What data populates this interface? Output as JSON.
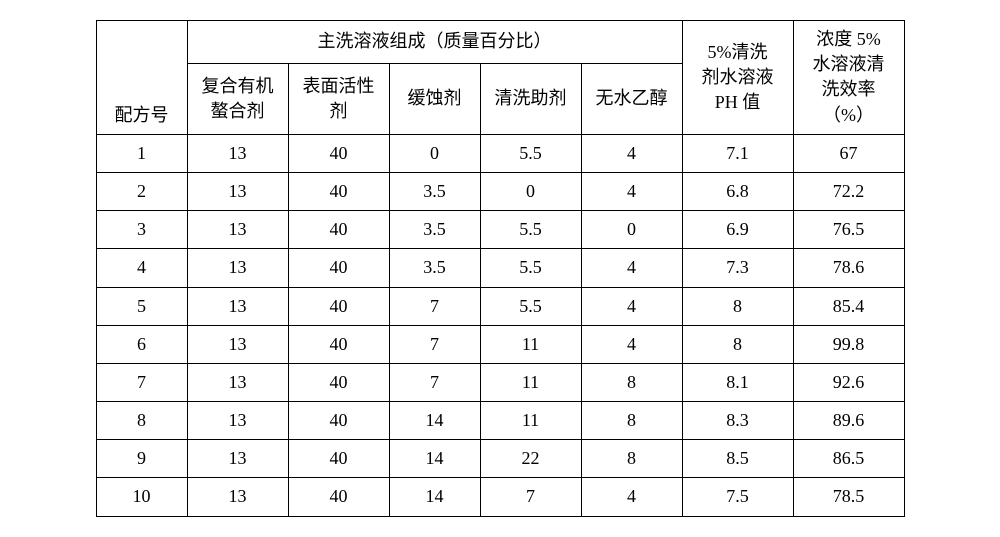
{
  "table": {
    "header": {
      "formula_label": "配方号",
      "composition_label": "主洗溶液组成（质量百分比）",
      "cols": {
        "a": "复合有机\n螯合剂",
        "b": "表面活性\n剂",
        "c": "缓蚀剂",
        "d": "清洗助剂",
        "e": "无水乙醇"
      },
      "ph_label": "5%清洗\n剂水溶液\nPH 值",
      "eff_label": "浓度 5%\n水溶液清\n洗效率\n（%）"
    },
    "rows": [
      {
        "n": "1",
        "a": "13",
        "b": "40",
        "c": "0",
        "d": "5.5",
        "e": "4",
        "ph": "7.1",
        "eff": "67"
      },
      {
        "n": "2",
        "a": "13",
        "b": "40",
        "c": "3.5",
        "d": "0",
        "e": "4",
        "ph": "6.8",
        "eff": "72.2"
      },
      {
        "n": "3",
        "a": "13",
        "b": "40",
        "c": "3.5",
        "d": "5.5",
        "e": "0",
        "ph": "6.9",
        "eff": "76.5"
      },
      {
        "n": "4",
        "a": "13",
        "b": "40",
        "c": "3.5",
        "d": "5.5",
        "e": "4",
        "ph": "7.3",
        "eff": "78.6"
      },
      {
        "n": "5",
        "a": "13",
        "b": "40",
        "c": "7",
        "d": "5.5",
        "e": "4",
        "ph": "8",
        "eff": "85.4"
      },
      {
        "n": "6",
        "a": "13",
        "b": "40",
        "c": "7",
        "d": "11",
        "e": "4",
        "ph": "8",
        "eff": "99.8"
      },
      {
        "n": "7",
        "a": "13",
        "b": "40",
        "c": "7",
        "d": "11",
        "e": "8",
        "ph": "8.1",
        "eff": "92.6"
      },
      {
        "n": "8",
        "a": "13",
        "b": "40",
        "c": "14",
        "d": "11",
        "e": "8",
        "ph": "8.3",
        "eff": "89.6"
      },
      {
        "n": "9",
        "a": "13",
        "b": "40",
        "c": "14",
        "d": "22",
        "e": "8",
        "ph": "8.5",
        "eff": "86.5"
      },
      {
        "n": "10",
        "a": "13",
        "b": "40",
        "c": "14",
        "d": "7",
        "e": "4",
        "ph": "7.5",
        "eff": "78.5"
      }
    ]
  },
  "style": {
    "border_color": "#000000",
    "bg_color": "#ffffff",
    "font_family": "SimSun",
    "font_size_pt": 14
  }
}
